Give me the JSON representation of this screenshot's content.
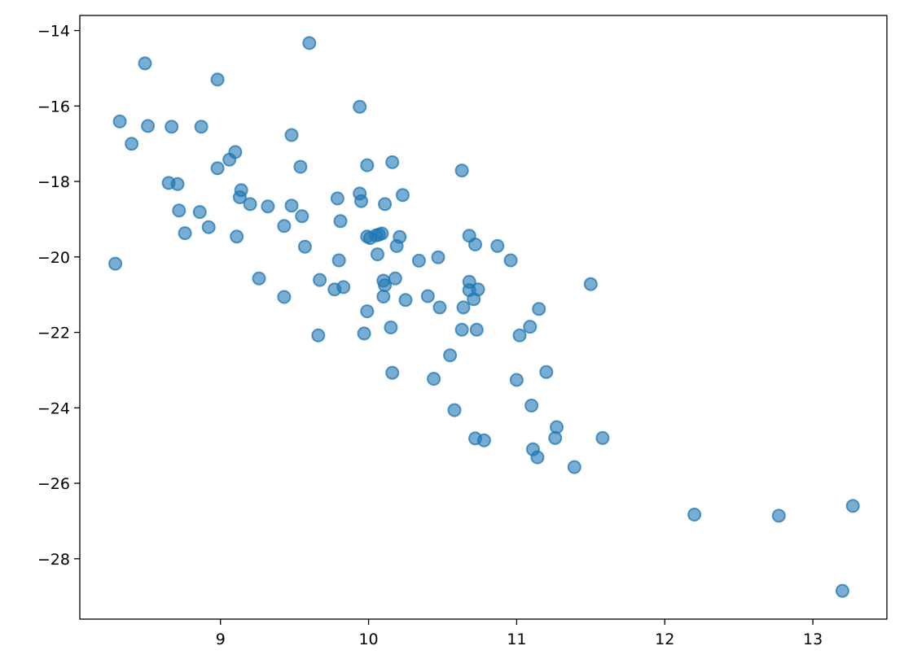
{
  "chart_data": {
    "type": "scatter",
    "title": "",
    "xlabel": "",
    "ylabel": "",
    "xlim": [
      8.05,
      13.5
    ],
    "ylim": [
      -29.6,
      -13.6
    ],
    "xticks": [
      9,
      10,
      11,
      12,
      13
    ],
    "yticks": [
      -14,
      -16,
      -18,
      -20,
      -22,
      -24,
      -26,
      -28
    ],
    "xtick_labels": [
      "9",
      "10",
      "11",
      "12",
      "13"
    ],
    "ytick_labels": [
      "−14",
      "−16",
      "−18",
      "−20",
      "−22",
      "−24",
      "−26",
      "−28"
    ],
    "grid": false,
    "legend": "none",
    "color": "#1f77b4",
    "alpha": 0.6,
    "points": [
      [
        8.49,
        -14.87
      ],
      [
        9.6,
        -14.33
      ],
      [
        8.98,
        -15.3
      ],
      [
        9.94,
        -16.02
      ],
      [
        8.32,
        -16.41
      ],
      [
        8.51,
        -16.53
      ],
      [
        8.67,
        -16.55
      ],
      [
        8.87,
        -16.55
      ],
      [
        9.48,
        -16.77
      ],
      [
        8.4,
        -17.0
      ],
      [
        9.1,
        -17.22
      ],
      [
        9.06,
        -17.42
      ],
      [
        8.98,
        -17.65
      ],
      [
        9.54,
        -17.61
      ],
      [
        9.99,
        -17.57
      ],
      [
        10.16,
        -17.49
      ],
      [
        10.63,
        -17.71
      ],
      [
        8.65,
        -18.04
      ],
      [
        8.71,
        -18.07
      ],
      [
        9.14,
        -18.23
      ],
      [
        9.13,
        -18.42
      ],
      [
        9.2,
        -18.6
      ],
      [
        9.32,
        -18.66
      ],
      [
        9.48,
        -18.64
      ],
      [
        9.79,
        -18.45
      ],
      [
        9.94,
        -18.32
      ],
      [
        9.95,
        -18.52
      ],
      [
        10.11,
        -18.6
      ],
      [
        10.23,
        -18.36
      ],
      [
        8.72,
        -18.77
      ],
      [
        8.86,
        -18.81
      ],
      [
        9.55,
        -18.92
      ],
      [
        9.81,
        -19.05
      ],
      [
        8.92,
        -19.21
      ],
      [
        9.43,
        -19.18
      ],
      [
        8.76,
        -19.37
      ],
      [
        9.11,
        -19.46
      ],
      [
        9.99,
        -19.46
      ],
      [
        10.01,
        -19.5
      ],
      [
        10.05,
        -19.43
      ],
      [
        10.07,
        -19.41
      ],
      [
        10.09,
        -19.38
      ],
      [
        10.21,
        -19.47
      ],
      [
        10.68,
        -19.44
      ],
      [
        9.57,
        -19.73
      ],
      [
        10.19,
        -19.71
      ],
      [
        10.72,
        -19.67
      ],
      [
        10.87,
        -19.71
      ],
      [
        8.29,
        -20.18
      ],
      [
        9.8,
        -20.09
      ],
      [
        10.06,
        -19.93
      ],
      [
        10.34,
        -20.1
      ],
      [
        10.47,
        -20.01
      ],
      [
        10.96,
        -20.09
      ],
      [
        9.26,
        -20.57
      ],
      [
        9.67,
        -20.61
      ],
      [
        10.1,
        -20.63
      ],
      [
        10.18,
        -20.57
      ],
      [
        10.11,
        -20.75
      ],
      [
        10.68,
        -20.66
      ],
      [
        11.5,
        -20.72
      ],
      [
        9.77,
        -20.86
      ],
      [
        9.83,
        -20.8
      ],
      [
        10.68,
        -20.88
      ],
      [
        10.74,
        -20.86
      ],
      [
        9.43,
        -21.06
      ],
      [
        10.1,
        -21.05
      ],
      [
        10.25,
        -21.14
      ],
      [
        10.4,
        -21.04
      ],
      [
        10.71,
        -21.12
      ],
      [
        10.48,
        -21.34
      ],
      [
        10.64,
        -21.34
      ],
      [
        11.15,
        -21.38
      ],
      [
        9.99,
        -21.44
      ],
      [
        10.15,
        -21.87
      ],
      [
        10.63,
        -21.93
      ],
      [
        10.73,
        -21.93
      ],
      [
        11.09,
        -21.85
      ],
      [
        9.66,
        -22.08
      ],
      [
        9.97,
        -22.03
      ],
      [
        11.02,
        -22.08
      ],
      [
        10.55,
        -22.61
      ],
      [
        10.16,
        -23.07
      ],
      [
        11.2,
        -23.05
      ],
      [
        10.44,
        -23.23
      ],
      [
        11.0,
        -23.26
      ],
      [
        10.58,
        -24.06
      ],
      [
        11.1,
        -23.94
      ],
      [
        11.27,
        -24.51
      ],
      [
        10.72,
        -24.81
      ],
      [
        10.78,
        -24.86
      ],
      [
        11.26,
        -24.8
      ],
      [
        11.58,
        -24.8
      ],
      [
        11.11,
        -25.1
      ],
      [
        11.14,
        -25.31
      ],
      [
        11.39,
        -25.57
      ],
      [
        12.2,
        -26.83
      ],
      [
        12.77,
        -26.86
      ],
      [
        13.27,
        -26.6
      ],
      [
        13.2,
        -28.85
      ]
    ]
  }
}
